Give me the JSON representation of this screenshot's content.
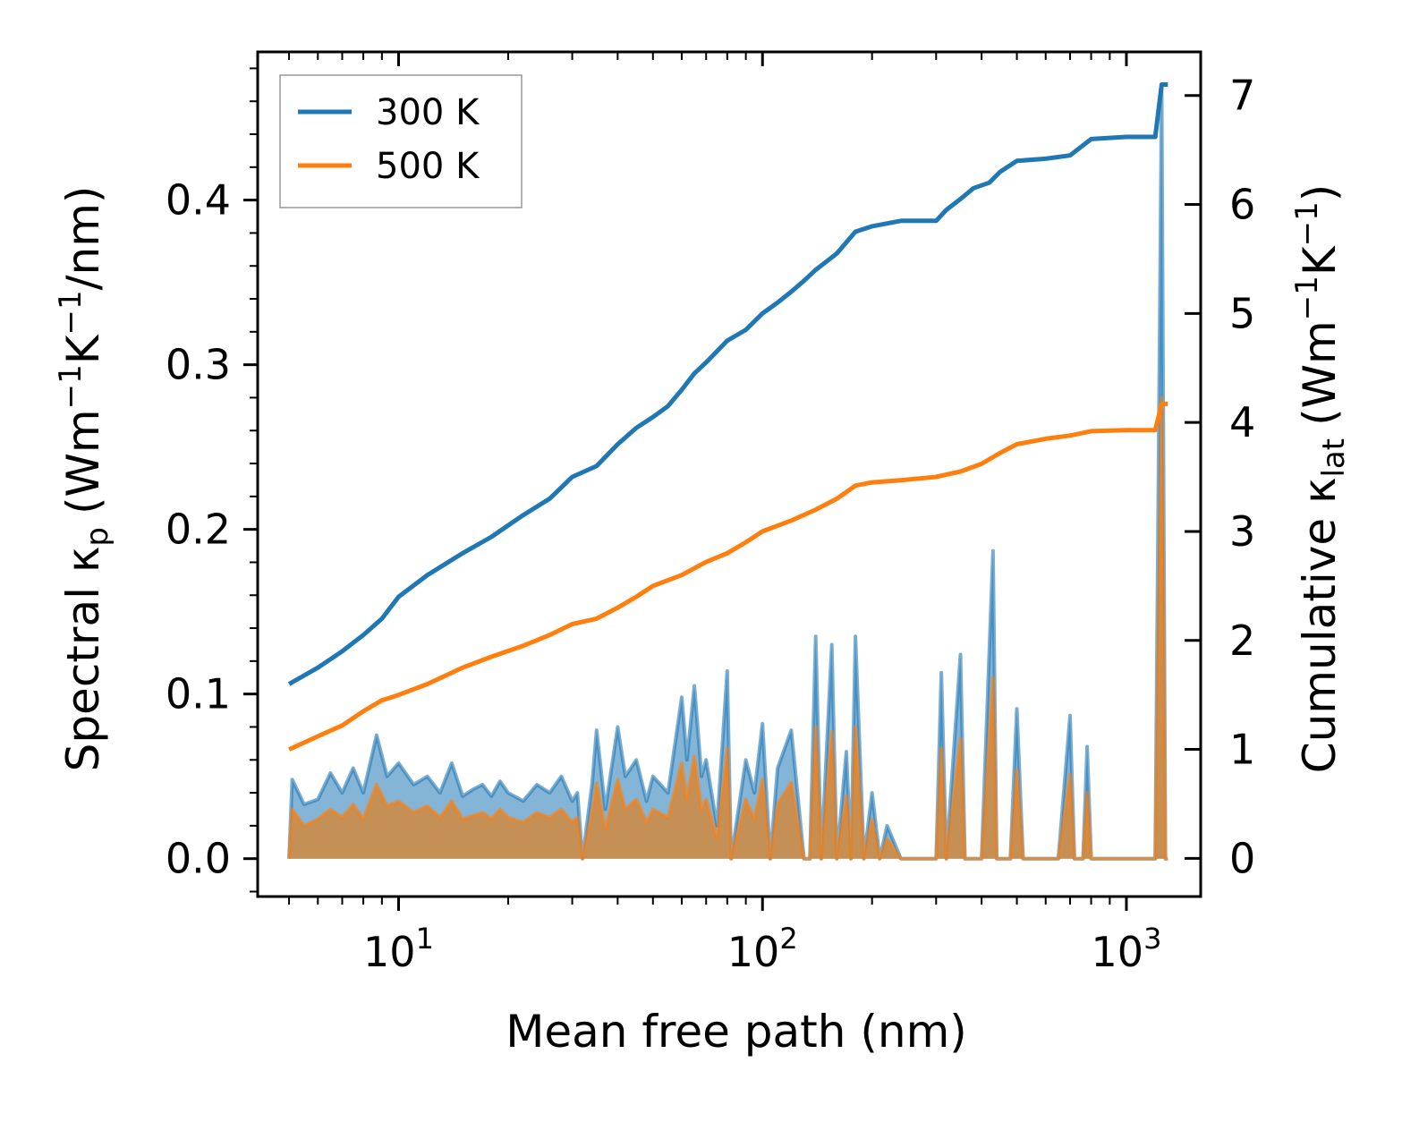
{
  "chart_data": {
    "type": "line",
    "xlabel": "Mean free path (nm)",
    "ylabel_left": {
      "main": "Spectral κ",
      "sub": "p",
      "unit": "(Wm",
      "sup1": "−1",
      "k": "K",
      "sup2": "−1",
      "tail": "/nm)"
    },
    "ylabel_right": {
      "main": "Cumulative κ",
      "sub": "lat",
      "unit": "(Wm",
      "sup1": "−1",
      "k": "K",
      "sup2": "−1",
      "tail": ")"
    },
    "x_scale": "log",
    "xlim": [
      4.1,
      1600
    ],
    "ylim_left": [
      -0.023,
      0.49
    ],
    "ylim_right": [
      -0.35,
      7.4
    ],
    "x_ticks": [
      {
        "value": 10,
        "base": "10",
        "exp": "1"
      },
      {
        "value": 100,
        "base": "10",
        "exp": "2"
      },
      {
        "value": 1000,
        "base": "10",
        "exp": "3"
      }
    ],
    "y_ticks_left": [
      {
        "value": 0.0,
        "label": "0.0"
      },
      {
        "value": 0.1,
        "label": "0.1"
      },
      {
        "value": 0.2,
        "label": "0.2"
      },
      {
        "value": 0.3,
        "label": "0.3"
      },
      {
        "value": 0.4,
        "label": "0.4"
      }
    ],
    "y_ticks_right": [
      {
        "value": 0,
        "label": "0"
      },
      {
        "value": 1,
        "label": "1"
      },
      {
        "value": 2,
        "label": "2"
      },
      {
        "value": 3,
        "label": "3"
      },
      {
        "value": 4,
        "label": "4"
      },
      {
        "value": 5,
        "label": "5"
      },
      {
        "value": 6,
        "label": "6"
      },
      {
        "value": 7,
        "label": "7"
      }
    ],
    "legend": {
      "position": "upper-left",
      "entries": [
        "300 K",
        "500 K"
      ]
    },
    "colors": {
      "300K": "#1f77b4",
      "500K": "#ff7f0e",
      "fill_300K": "#1f77b4",
      "fill_500K": "#d08a3e"
    },
    "series": [
      {
        "name": "300 K",
        "axis": "right",
        "kind": "cumulative",
        "points": [
          [
            5,
            1.6
          ],
          [
            6,
            1.75
          ],
          [
            7,
            1.9
          ],
          [
            8,
            2.05
          ],
          [
            9,
            2.2
          ],
          [
            10,
            2.4
          ],
          [
            12,
            2.6
          ],
          [
            15,
            2.8
          ],
          [
            18,
            2.95
          ],
          [
            22,
            3.15
          ],
          [
            26,
            3.3
          ],
          [
            30,
            3.5
          ],
          [
            35,
            3.6
          ],
          [
            40,
            3.8
          ],
          [
            45,
            3.95
          ],
          [
            50,
            4.05
          ],
          [
            55,
            4.15
          ],
          [
            60,
            4.3
          ],
          [
            65,
            4.45
          ],
          [
            70,
            4.55
          ],
          [
            80,
            4.75
          ],
          [
            90,
            4.85
          ],
          [
            100,
            5.0
          ],
          [
            110,
            5.1
          ],
          [
            120,
            5.2
          ],
          [
            130,
            5.3
          ],
          [
            140,
            5.4
          ],
          [
            160,
            5.55
          ],
          [
            180,
            5.75
          ],
          [
            200,
            5.8
          ],
          [
            240,
            5.85
          ],
          [
            300,
            5.85
          ],
          [
            320,
            5.95
          ],
          [
            350,
            6.05
          ],
          [
            380,
            6.15
          ],
          [
            420,
            6.2
          ],
          [
            450,
            6.3
          ],
          [
            500,
            6.4
          ],
          [
            600,
            6.42
          ],
          [
            700,
            6.45
          ],
          [
            800,
            6.6
          ],
          [
            1000,
            6.62
          ],
          [
            1200,
            6.62
          ],
          [
            1250,
            7.1
          ],
          [
            1300,
            7.1
          ]
        ]
      },
      {
        "name": "500 K",
        "axis": "right",
        "kind": "cumulative",
        "points": [
          [
            5,
            1.0
          ],
          [
            6,
            1.12
          ],
          [
            7,
            1.22
          ],
          [
            8,
            1.35
          ],
          [
            9,
            1.45
          ],
          [
            10,
            1.5
          ],
          [
            12,
            1.6
          ],
          [
            15,
            1.75
          ],
          [
            18,
            1.85
          ],
          [
            22,
            1.95
          ],
          [
            26,
            2.05
          ],
          [
            30,
            2.15
          ],
          [
            35,
            2.2
          ],
          [
            40,
            2.3
          ],
          [
            45,
            2.4
          ],
          [
            50,
            2.5
          ],
          [
            60,
            2.6
          ],
          [
            70,
            2.72
          ],
          [
            80,
            2.8
          ],
          [
            90,
            2.9
          ],
          [
            100,
            3.0
          ],
          [
            120,
            3.1
          ],
          [
            140,
            3.2
          ],
          [
            160,
            3.3
          ],
          [
            180,
            3.42
          ],
          [
            200,
            3.45
          ],
          [
            240,
            3.47
          ],
          [
            300,
            3.5
          ],
          [
            350,
            3.55
          ],
          [
            400,
            3.62
          ],
          [
            450,
            3.72
          ],
          [
            500,
            3.8
          ],
          [
            600,
            3.85
          ],
          [
            700,
            3.88
          ],
          [
            800,
            3.92
          ],
          [
            1000,
            3.93
          ],
          [
            1200,
            3.93
          ],
          [
            1250,
            4.17
          ],
          [
            1300,
            4.17
          ]
        ]
      },
      {
        "name": "300 K spectral",
        "axis": "left",
        "kind": "spectral",
        "points": [
          [
            5,
            0.0
          ],
          [
            5.1,
            0.048
          ],
          [
            5.5,
            0.033
          ],
          [
            6,
            0.036
          ],
          [
            6.5,
            0.052
          ],
          [
            7,
            0.04
          ],
          [
            7.5,
            0.055
          ],
          [
            8,
            0.04
          ],
          [
            8.7,
            0.075
          ],
          [
            9.3,
            0.05
          ],
          [
            10,
            0.058
          ],
          [
            11,
            0.045
          ],
          [
            12,
            0.05
          ],
          [
            13,
            0.04
          ],
          [
            14,
            0.058
          ],
          [
            15,
            0.038
          ],
          [
            16,
            0.042
          ],
          [
            17,
            0.045
          ],
          [
            18,
            0.038
          ],
          [
            19,
            0.047
          ],
          [
            20,
            0.04
          ],
          [
            22,
            0.035
          ],
          [
            24,
            0.045
          ],
          [
            26,
            0.04
          ],
          [
            28,
            0.05
          ],
          [
            30,
            0.035
          ],
          [
            31,
            0.04
          ],
          [
            32,
            0.0
          ],
          [
            34,
            0.045
          ],
          [
            35,
            0.078
          ],
          [
            37,
            0.03
          ],
          [
            40,
            0.08
          ],
          [
            42,
            0.05
          ],
          [
            45,
            0.06
          ],
          [
            48,
            0.035
          ],
          [
            50,
            0.05
          ],
          [
            55,
            0.04
          ],
          [
            60,
            0.098
          ],
          [
            62,
            0.06
          ],
          [
            65,
            0.105
          ],
          [
            68,
            0.05
          ],
          [
            70,
            0.06
          ],
          [
            75,
            0.02
          ],
          [
            80,
            0.114
          ],
          [
            82,
            0.0
          ],
          [
            90,
            0.06
          ],
          [
            95,
            0.04
          ],
          [
            100,
            0.082
          ],
          [
            105,
            0.0
          ],
          [
            110,
            0.055
          ],
          [
            120,
            0.078
          ],
          [
            130,
            0.0
          ],
          [
            135,
            0.0
          ],
          [
            140,
            0.135
          ],
          [
            145,
            0.0
          ],
          [
            155,
            0.13
          ],
          [
            160,
            0.0
          ],
          [
            170,
            0.065
          ],
          [
            175,
            0.0
          ],
          [
            180,
            0.135
          ],
          [
            190,
            0.0
          ],
          [
            200,
            0.04
          ],
          [
            210,
            0.0
          ],
          [
            220,
            0.02
          ],
          [
            240,
            0.0
          ],
          [
            300,
            0.0
          ],
          [
            310,
            0.113
          ],
          [
            320,
            0.0
          ],
          [
            350,
            0.124
          ],
          [
            360,
            0.0
          ],
          [
            400,
            0.0
          ],
          [
            430,
            0.187
          ],
          [
            440,
            0.0
          ],
          [
            480,
            0.0
          ],
          [
            500,
            0.091
          ],
          [
            520,
            0.0
          ],
          [
            650,
            0.0
          ],
          [
            700,
            0.087
          ],
          [
            720,
            0.0
          ],
          [
            760,
            0.0
          ],
          [
            780,
            0.068
          ],
          [
            800,
            0.0
          ],
          [
            1200,
            0.0
          ],
          [
            1250,
            0.47
          ],
          [
            1280,
            0.0
          ],
          [
            1300,
            0.0
          ]
        ]
      },
      {
        "name": "500 K spectral",
        "axis": "left",
        "kind": "spectral",
        "points": [
          [
            5,
            0.0
          ],
          [
            5.1,
            0.03
          ],
          [
            5.5,
            0.02
          ],
          [
            6,
            0.024
          ],
          [
            6.5,
            0.03
          ],
          [
            7,
            0.025
          ],
          [
            7.5,
            0.033
          ],
          [
            8,
            0.024
          ],
          [
            8.7,
            0.045
          ],
          [
            9.3,
            0.032
          ],
          [
            10,
            0.035
          ],
          [
            11,
            0.028
          ],
          [
            12,
            0.032
          ],
          [
            13,
            0.025
          ],
          [
            14,
            0.035
          ],
          [
            15,
            0.024
          ],
          [
            16,
            0.026
          ],
          [
            17,
            0.028
          ],
          [
            18,
            0.024
          ],
          [
            19,
            0.03
          ],
          [
            20,
            0.025
          ],
          [
            22,
            0.022
          ],
          [
            24,
            0.028
          ],
          [
            26,
            0.025
          ],
          [
            28,
            0.03
          ],
          [
            30,
            0.022
          ],
          [
            31,
            0.025
          ],
          [
            32,
            0.0
          ],
          [
            34,
            0.028
          ],
          [
            35,
            0.046
          ],
          [
            37,
            0.018
          ],
          [
            40,
            0.048
          ],
          [
            42,
            0.03
          ],
          [
            45,
            0.036
          ],
          [
            48,
            0.022
          ],
          [
            50,
            0.03
          ],
          [
            55,
            0.025
          ],
          [
            60,
            0.058
          ],
          [
            62,
            0.036
          ],
          [
            65,
            0.062
          ],
          [
            68,
            0.03
          ],
          [
            70,
            0.036
          ],
          [
            75,
            0.012
          ],
          [
            80,
            0.067
          ],
          [
            82,
            0.0
          ],
          [
            90,
            0.036
          ],
          [
            95,
            0.024
          ],
          [
            100,
            0.048
          ],
          [
            105,
            0.0
          ],
          [
            110,
            0.033
          ],
          [
            120,
            0.046
          ],
          [
            130,
            0.0
          ],
          [
            135,
            0.0
          ],
          [
            140,
            0.08
          ],
          [
            145,
            0.0
          ],
          [
            155,
            0.077
          ],
          [
            160,
            0.0
          ],
          [
            170,
            0.038
          ],
          [
            175,
            0.0
          ],
          [
            180,
            0.08
          ],
          [
            190,
            0.0
          ],
          [
            200,
            0.024
          ],
          [
            210,
            0.0
          ],
          [
            220,
            0.012
          ],
          [
            240,
            0.0
          ],
          [
            300,
            0.0
          ],
          [
            310,
            0.067
          ],
          [
            320,
            0.0
          ],
          [
            350,
            0.073
          ],
          [
            360,
            0.0
          ],
          [
            400,
            0.0
          ],
          [
            430,
            0.11
          ],
          [
            440,
            0.0
          ],
          [
            480,
            0.0
          ],
          [
            500,
            0.054
          ],
          [
            520,
            0.0
          ],
          [
            650,
            0.0
          ],
          [
            700,
            0.051
          ],
          [
            720,
            0.0
          ],
          [
            760,
            0.0
          ],
          [
            780,
            0.04
          ],
          [
            800,
            0.0
          ],
          [
            1200,
            0.0
          ],
          [
            1250,
            0.28
          ],
          [
            1280,
            0.0
          ],
          [
            1300,
            0.0
          ]
        ]
      }
    ]
  }
}
